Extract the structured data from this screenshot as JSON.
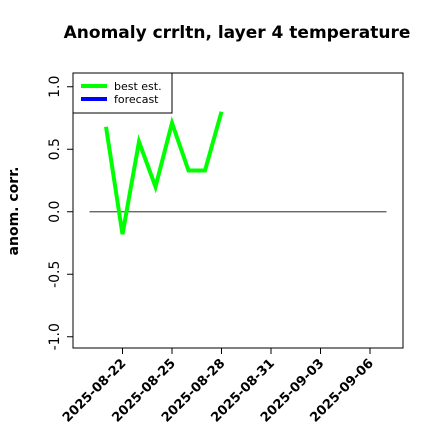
{
  "chart_data": {
    "type": "line",
    "title": "Anomaly crrltn, layer 4 temperature",
    "ylabel": "anom. corr.",
    "x": [
      "2025-08-21",
      "2025-08-22",
      "2025-08-23",
      "2025-08-24",
      "2025-08-25",
      "2025-08-26",
      "2025-08-27",
      "2025-08-28"
    ],
    "series": [
      {
        "name": "best est.",
        "color": "#00ff00",
        "values": [
          0.68,
          -0.18,
          0.56,
          0.2,
          0.71,
          0.33,
          0.33,
          0.8
        ]
      },
      {
        "name": "forecast",
        "color": "#0000ff",
        "values": [
          null,
          null,
          null,
          null,
          null,
          null,
          null,
          null
        ]
      }
    ],
    "xlim": [
      "2025-08-19",
      "2025-09-08"
    ],
    "xticks": [
      "2025-08-22",
      "2025-08-25",
      "2025-08-28",
      "2025-08-31",
      "2025-09-03",
      "2025-09-06"
    ],
    "xtick_highlight": {
      "index": 2,
      "color": "#228b22"
    },
    "ylim": [
      -1.09,
      1.11
    ],
    "yticks": [
      {
        "value": -1,
        "label": "-1.0"
      },
      {
        "value": -0.5,
        "label": "-0.5"
      },
      {
        "value": 0,
        "label": "0.0"
      },
      {
        "value": 0.5,
        "label": "0.5"
      },
      {
        "value": 1,
        "label": "1.0"
      }
    ],
    "hline": {
      "y": 0,
      "x": [
        "2025-08-20",
        "2025-09-07"
      ],
      "color": "#555555"
    },
    "legend": "upper left"
  }
}
